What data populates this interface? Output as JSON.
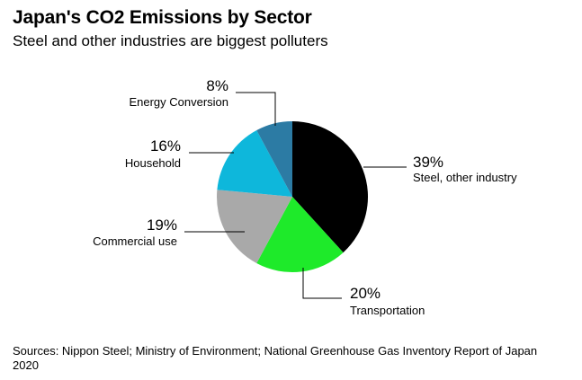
{
  "header": {
    "title": "Japan's CO2 Emissions by Sector",
    "subtitle": "Steel and other industries are biggest polluters"
  },
  "chart_data": {
    "type": "pie",
    "title": "Japan's CO2 Emissions by Sector",
    "subtitle": "Steel and other industries are biggest polluters",
    "start_angle_deg": 0,
    "direction": "clockwise",
    "slices": [
      {
        "label": "Steel, other industry",
        "value": 39,
        "display": "39%",
        "color": "#000000"
      },
      {
        "label": "Transportation",
        "value": 20,
        "display": "20%",
        "color": "#1EEA2A"
      },
      {
        "label": "Commercial use",
        "value": 19,
        "display": "19%",
        "color": "#A9A9A9"
      },
      {
        "label": "Household",
        "value": 16,
        "display": "16%",
        "color": "#0EB7DB"
      },
      {
        "label": "Energy Conversion",
        "value": 8,
        "display": "8%",
        "color": "#2C7BA4"
      }
    ]
  },
  "footer": {
    "source": "Sources: Nippon Steel; Ministry of Environment; National Greenhouse Gas Inventory Report of Japan 2020"
  }
}
